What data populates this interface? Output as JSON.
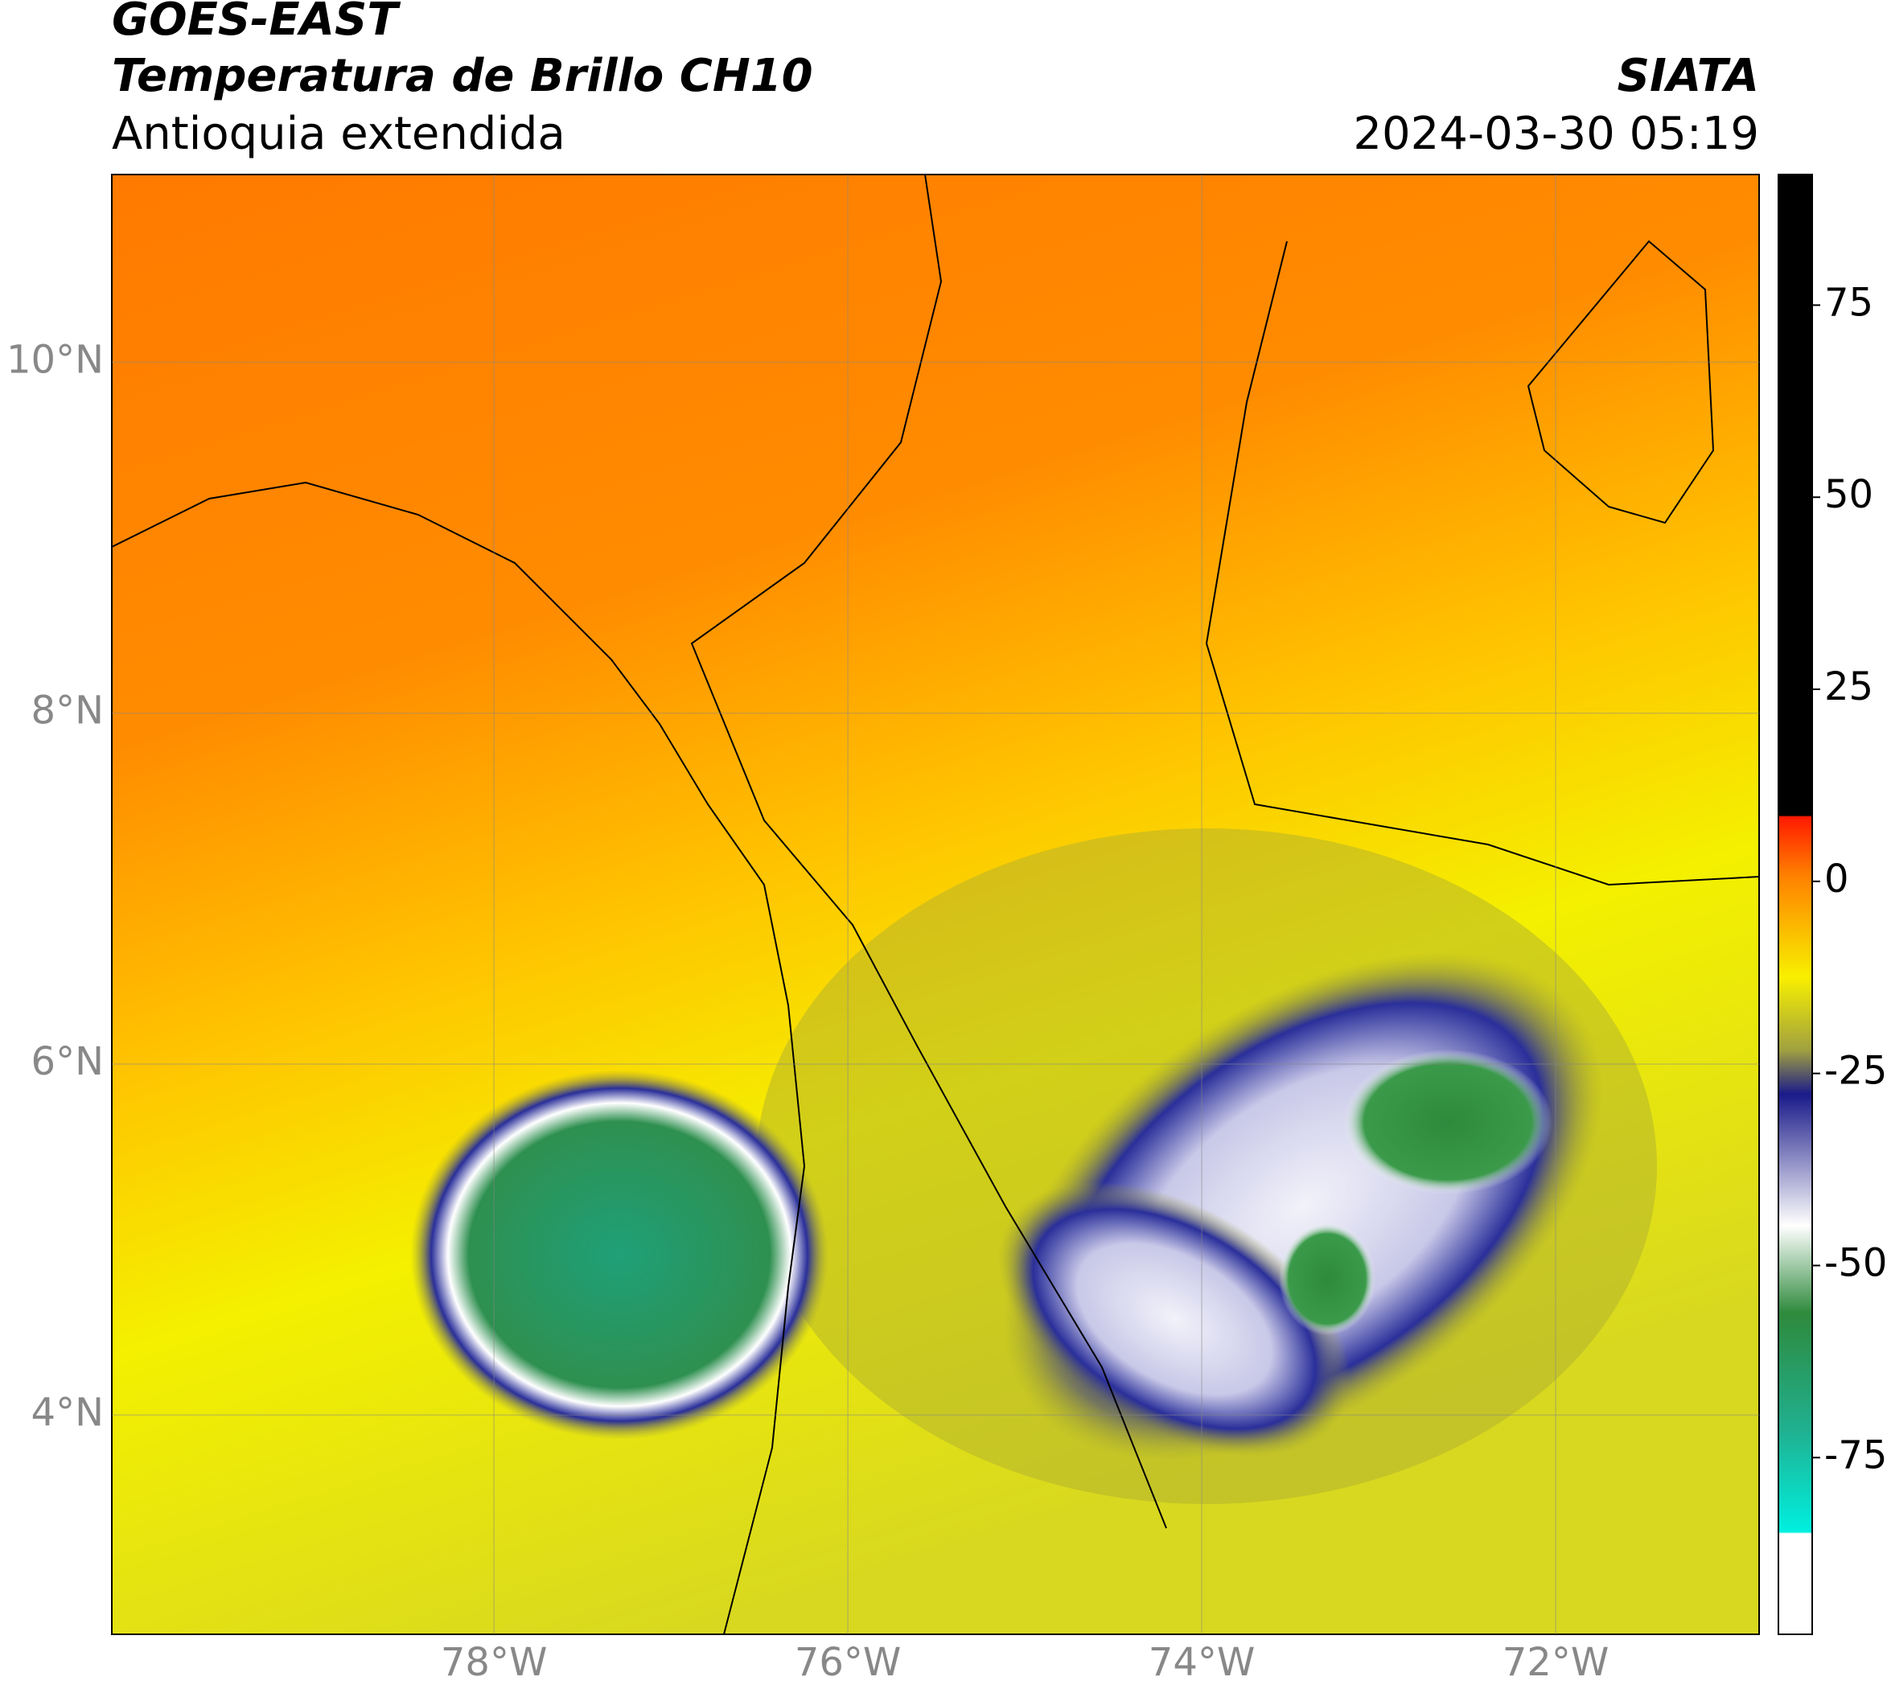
{
  "header": {
    "line1": "GOES-EAST",
    "line2": "Temperatura de Brillo CH10",
    "subtitle": "Antioquia extendida",
    "agency": "SIATA",
    "datetime": "2024-03-30 05:19"
  },
  "map": {
    "lon_range": [
      -80.16,
      -70.85
    ],
    "lat_range": [
      2.75,
      11.07
    ],
    "lon_ticks": [
      {
        "value": -78,
        "label": "78°W"
      },
      {
        "value": -76,
        "label": "76°W"
      },
      {
        "value": -74,
        "label": "74°W"
      },
      {
        "value": -72,
        "label": "72°W"
      }
    ],
    "lat_ticks": [
      {
        "value": 4,
        "label": "4°N"
      },
      {
        "value": 6,
        "label": "6°N"
      },
      {
        "value": 8,
        "label": "8°N"
      },
      {
        "value": 10,
        "label": "10°N"
      }
    ]
  },
  "colorbar": {
    "range": [
      -98,
      92
    ],
    "ticks": [
      75,
      50,
      25,
      0,
      -25,
      -50,
      -75
    ]
  }
}
